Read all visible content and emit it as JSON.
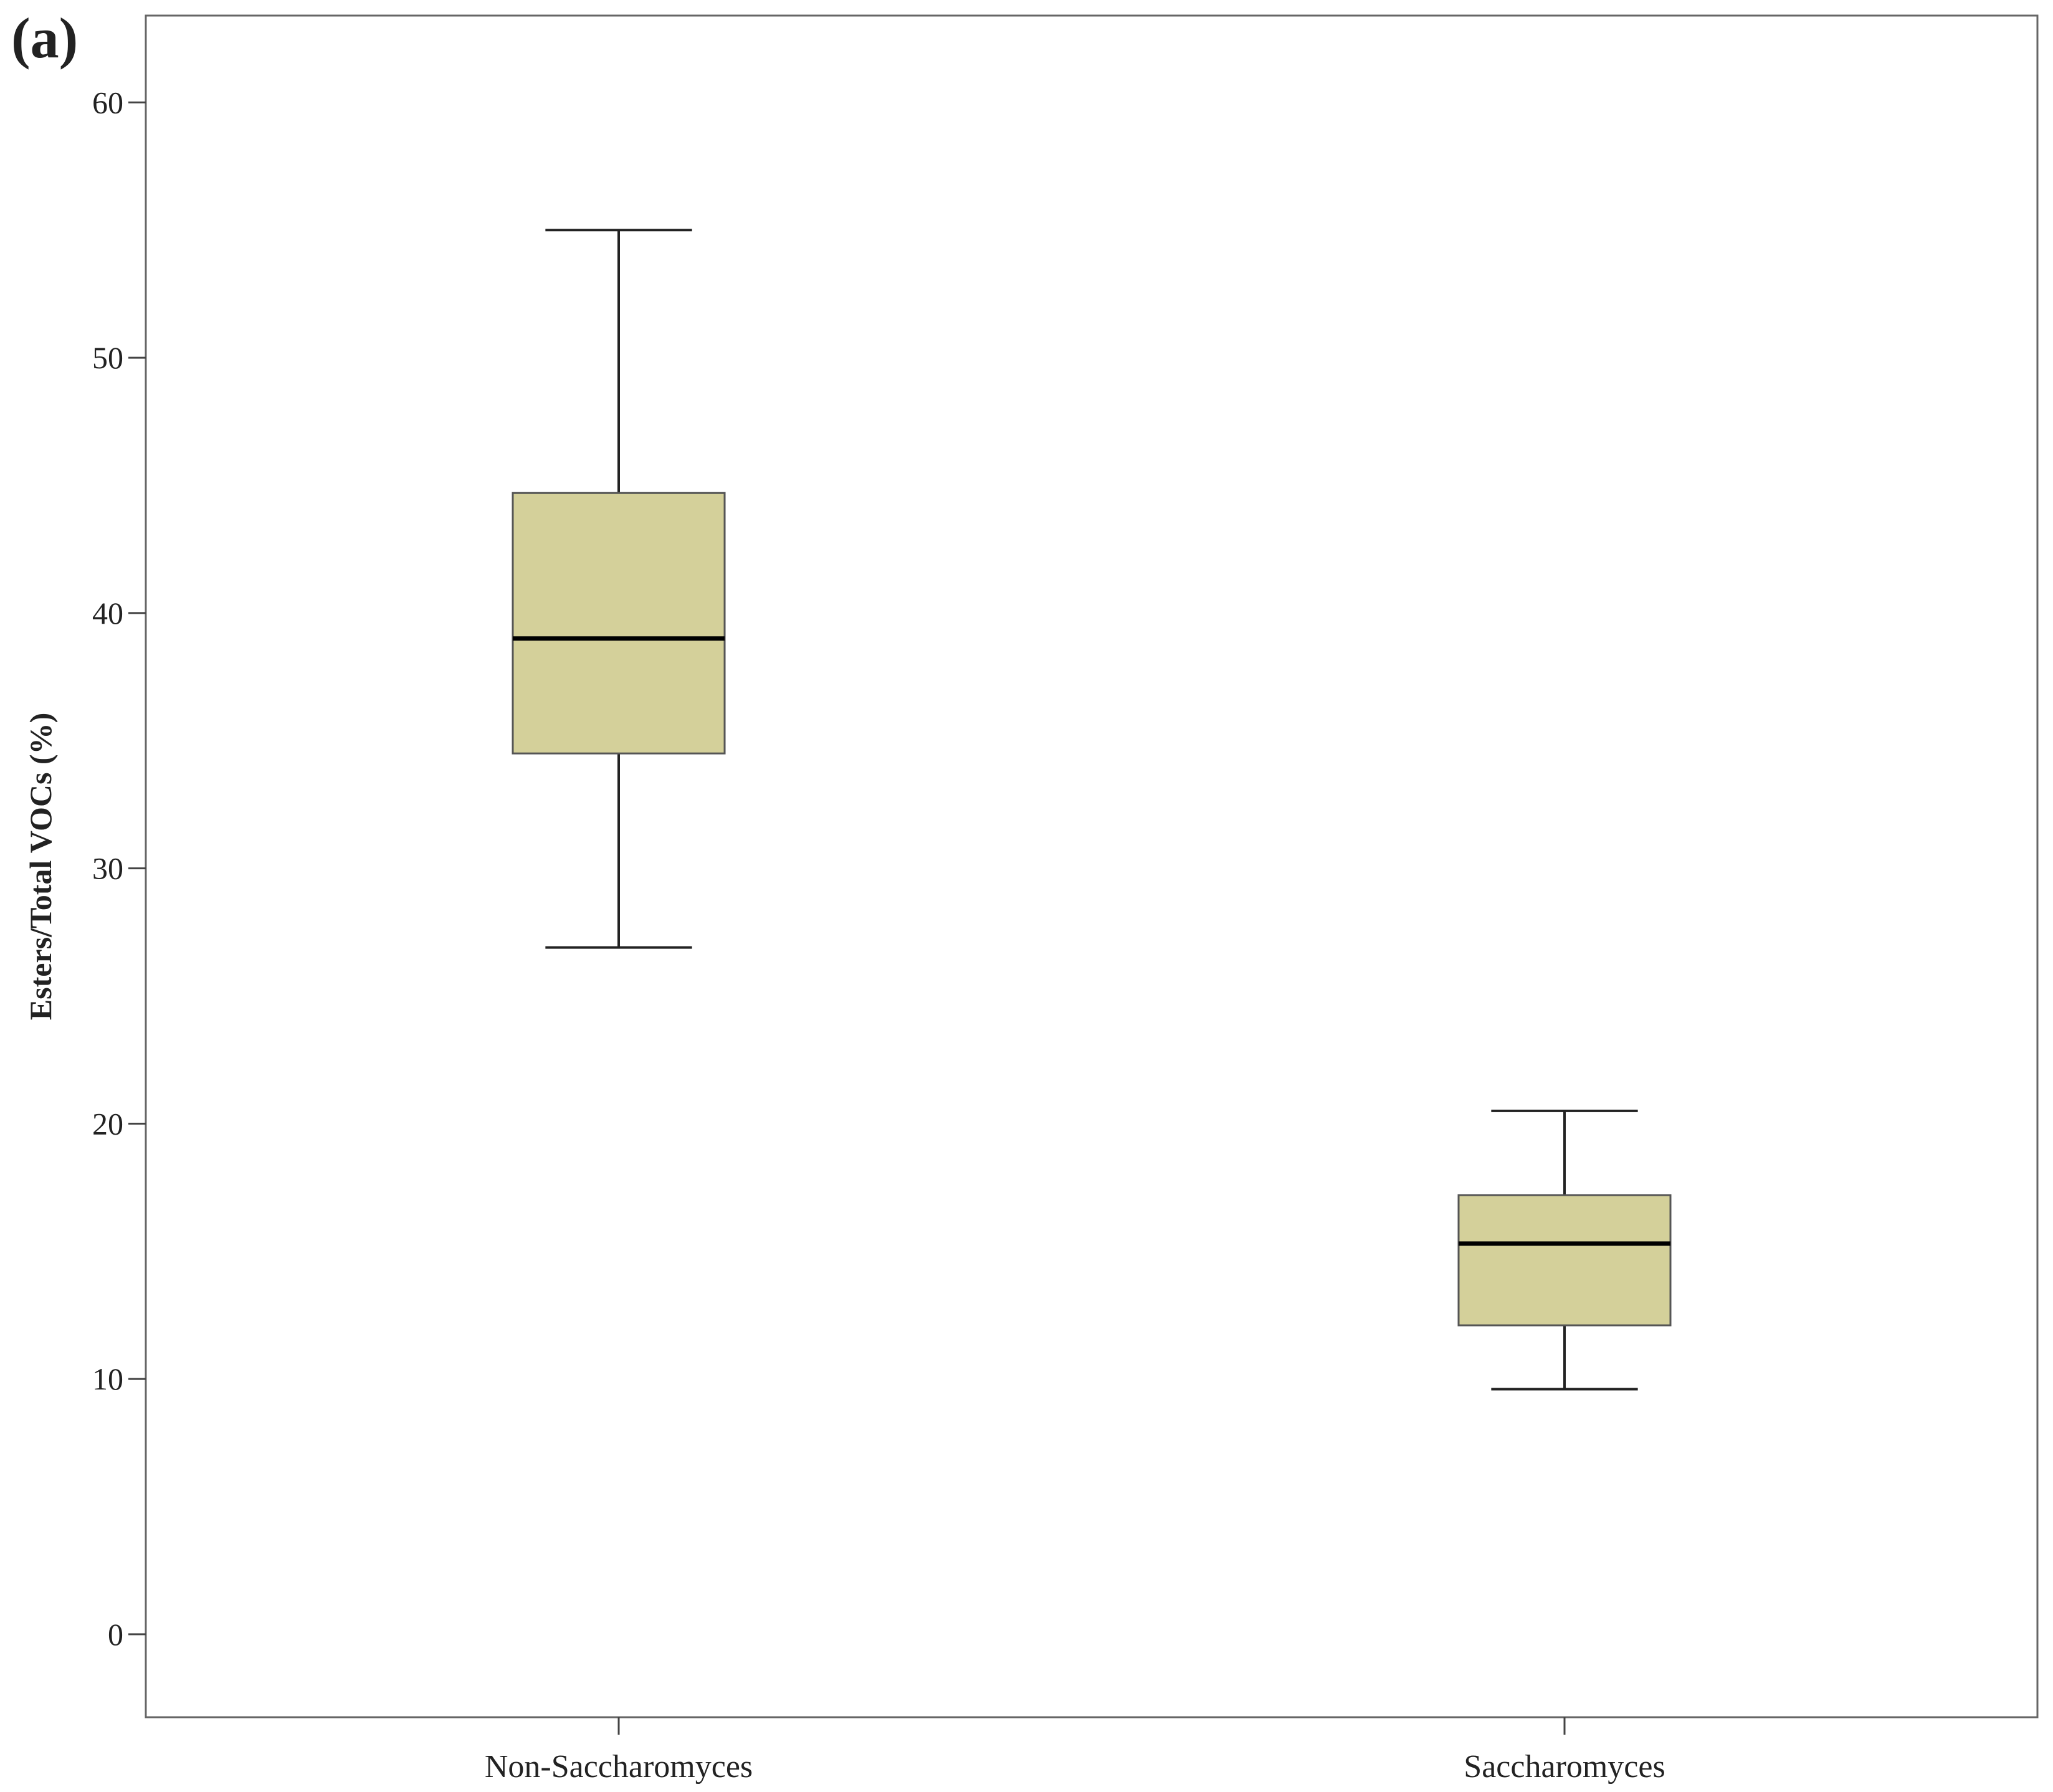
{
  "panel_label": "(a)",
  "chart_data": {
    "type": "box",
    "ylabel": "Esters/Total VOCs (%)",
    "categories": [
      "Non-Saccharomyces",
      "Saccharomyces"
    ],
    "min": [
      26.9,
      9.6
    ],
    "q1": [
      34.5,
      12.1
    ],
    "median": [
      39,
      15.3
    ],
    "q3": [
      44.7,
      17.2
    ],
    "max": [
      55,
      20.5
    ],
    "color": "#d4d09a",
    "ylim": [
      -3.25,
      63.4
    ],
    "yticks": [
      0,
      10,
      20,
      30,
      40,
      50,
      60
    ],
    "grid": false
  }
}
